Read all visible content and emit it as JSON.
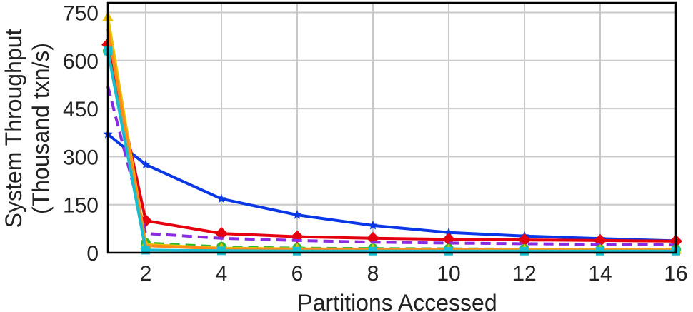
{
  "chart_data": {
    "type": "line",
    "title": "",
    "xlabel": "Partitions Accessed",
    "ylabel_lines": [
      "System Throughput",
      "(Thousand txn/s)"
    ],
    "x": [
      1,
      2,
      4,
      6,
      8,
      10,
      12,
      14,
      16
    ],
    "xlim": [
      1,
      16
    ],
    "ylim": [
      0,
      780
    ],
    "xticks": [
      2,
      4,
      6,
      8,
      10,
      12,
      14,
      16
    ],
    "xtick_labels": [
      "2",
      "4",
      "6",
      "8",
      "10",
      "12",
      "14",
      "16"
    ],
    "yticks": [
      0,
      150,
      300,
      450,
      600,
      750
    ],
    "ytick_labels": [
      "0",
      "150",
      "300",
      "450",
      "600",
      "750"
    ],
    "grid": true,
    "legend": "none",
    "series": [
      {
        "color": "#0a37e6",
        "dash": "solid",
        "marker": "star",
        "values": [
          370,
          275,
          168,
          118,
          85,
          63,
          52,
          44,
          37
        ]
      },
      {
        "color": "#e6000f",
        "dash": "solid",
        "marker": "diamond",
        "values": [
          650,
          100,
          60,
          50,
          45,
          42,
          40,
          38,
          36
        ]
      },
      {
        "color": "#8a2be2",
        "dash": "dashed",
        "marker": "none",
        "values": [
          520,
          60,
          45,
          38,
          33,
          30,
          28,
          26,
          24
        ]
      },
      {
        "color": "#2eb82e",
        "dash": "dashed",
        "marker": "circle",
        "values": [
          630,
          30,
          18,
          14,
          13,
          12,
          11,
          10,
          10
        ]
      },
      {
        "color": "#e6c200",
        "dash": "solid",
        "marker": "triangle",
        "values": [
          735,
          25,
          14,
          12,
          11,
          10,
          10,
          9,
          9
        ]
      },
      {
        "color": "#ff8c1a",
        "dash": "solid",
        "marker": "none",
        "values": [
          700,
          22,
          12,
          10,
          9,
          9,
          8,
          8,
          8
        ]
      },
      {
        "color": "#17becf",
        "dash": "solid",
        "marker": "square",
        "values": [
          630,
          8,
          6,
          5,
          5,
          5,
          5,
          5,
          5
        ]
      }
    ]
  }
}
